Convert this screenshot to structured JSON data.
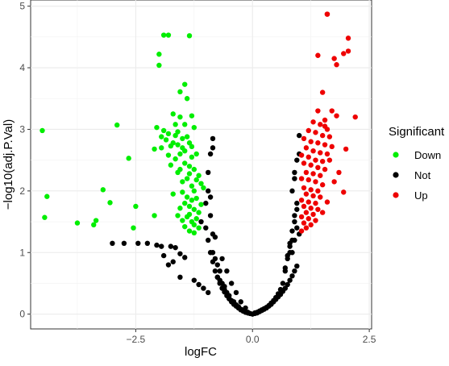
{
  "chart_data": {
    "type": "scatter",
    "title": "",
    "xlabel": "logFC",
    "ylabel": "−log10(adj.P.Val)",
    "xlim": [
      -4.75,
      2.55
    ],
    "ylim": [
      -0.24,
      5.1
    ],
    "x_ticks": [
      -2.5,
      0.0,
      2.5
    ],
    "x_tick_labels": [
      "−2.5",
      "0.0",
      "2.5"
    ],
    "y_ticks": [
      0,
      1,
      2,
      3,
      4,
      5
    ],
    "y_tick_labels": [
      "0",
      "1",
      "2",
      "3",
      "4",
      "5"
    ],
    "grid": true,
    "legend": {
      "title": "Significant",
      "placement": "right",
      "entries": [
        {
          "label": "Down",
          "color": "#00ee00"
        },
        {
          "label": "Not",
          "color": "#000000"
        },
        {
          "label": "Up",
          "color": "#ee0000"
        }
      ]
    },
    "series": [
      {
        "name": "Down",
        "color": "#00ee00",
        "x": [
          -1.9,
          -2.0,
          -1.8,
          -1.35,
          -2.0,
          -1.45,
          -1.55,
          -1.4,
          -1.7,
          -1.3,
          -1.55,
          -1.65,
          -1.45,
          -2.05,
          -1.25,
          -1.9,
          -1.6,
          -1.8,
          -1.65,
          -1.95,
          -1.4,
          -1.5,
          -1.85,
          -1.35,
          -1.7,
          -1.6,
          -1.75,
          -1.3,
          -1.95,
          -1.5,
          -2.1,
          -1.45,
          -1.55,
          -1.2,
          -1.8,
          -1.3,
          -1.65,
          -1.45,
          -1.75,
          -1.35,
          -1.55,
          -1.25,
          -1.6,
          -1.35,
          -1.15,
          -1.4,
          -1.2,
          -1.5,
          -1.1,
          -1.3,
          -1.05,
          -1.25,
          -1.5,
          -1.7,
          -1.4,
          -1.2,
          -1.3,
          -1.45,
          -1.1,
          -1.35,
          -1.55,
          -1.25,
          -1.15,
          -1.35,
          -1.6,
          -1.4,
          -1.2,
          -1.5,
          -1.3,
          -1.25,
          -1.45,
          -1.15,
          -1.35,
          -1.25,
          -2.1,
          -4.5,
          -2.9,
          -2.65,
          -4.4,
          -3.2,
          -4.45,
          -3.35,
          -3.05,
          -2.5,
          -3.75,
          -3.4,
          -2.55
        ],
        "y": [
          4.53,
          4.22,
          4.53,
          4.52,
          4.04,
          3.73,
          3.61,
          3.5,
          3.25,
          3.22,
          3.2,
          3.08,
          3.08,
          3.03,
          3.03,
          2.98,
          2.96,
          2.93,
          2.9,
          2.88,
          2.88,
          2.85,
          2.83,
          2.78,
          2.78,
          2.75,
          2.73,
          2.72,
          2.7,
          2.7,
          2.68,
          2.65,
          2.6,
          2.6,
          2.58,
          2.55,
          2.52,
          2.45,
          2.42,
          2.4,
          2.35,
          2.35,
          2.3,
          2.28,
          2.25,
          2.2,
          2.18,
          2.15,
          2.12,
          2.08,
          2.05,
          2.0,
          1.98,
          1.95,
          1.9,
          1.88,
          1.85,
          1.8,
          1.78,
          1.75,
          1.72,
          1.7,
          1.65,
          1.62,
          1.6,
          1.58,
          1.55,
          1.52,
          1.5,
          1.45,
          1.42,
          1.4,
          1.35,
          1.32,
          1.6,
          2.98,
          3.07,
          2.53,
          1.91,
          2.02,
          1.57,
          1.52,
          1.81,
          1.75,
          1.48,
          1.45,
          1.4
        ]
      },
      {
        "name": "Up",
        "color": "#ee0000",
        "x": [
          1.6,
          1.6,
          2.05,
          1.95,
          2.05,
          1.4,
          1.75,
          1.8,
          1.5,
          1.7,
          1.4,
          1.8,
          2.2,
          1.55,
          1.3,
          1.45,
          1.55,
          1.6,
          1.2,
          1.35,
          1.5,
          1.65,
          1.1,
          1.25,
          1.4,
          1.55,
          1.7,
          1.15,
          1.3,
          1.45,
          1.6,
          1.05,
          1.2,
          1.35,
          1.5,
          1.1,
          1.25,
          1.4,
          1.55,
          1.15,
          1.3,
          1.45,
          1.05,
          1.2,
          1.35,
          1.5,
          1.1,
          1.25,
          1.4,
          1.15,
          1.3,
          1.45,
          1.05,
          1.2,
          1.35,
          1.1,
          1.25,
          1.4,
          1.15,
          1.3,
          1.05,
          1.2,
          1.35,
          1.1,
          1.25,
          1.15,
          1.05,
          2.0,
          1.65,
          1.85,
          1.75,
          1.95,
          1.6,
          1.5
        ],
        "y": [
          4.87,
          4.87,
          4.48,
          4.23,
          4.27,
          4.2,
          4.15,
          4.05,
          3.6,
          3.3,
          3.3,
          3.22,
          3.2,
          3.15,
          3.12,
          3.08,
          3.05,
          3.0,
          2.98,
          2.95,
          2.9,
          2.88,
          2.85,
          2.8,
          2.78,
          2.75,
          2.72,
          2.7,
          2.65,
          2.62,
          2.6,
          2.58,
          2.55,
          2.5,
          2.48,
          2.45,
          2.42,
          2.38,
          2.35,
          2.3,
          2.28,
          2.25,
          2.2,
          2.18,
          2.15,
          2.1,
          2.05,
          2.02,
          2.0,
          1.95,
          1.92,
          1.9,
          1.85,
          1.82,
          1.8,
          1.75,
          1.72,
          1.7,
          1.65,
          1.62,
          1.58,
          1.55,
          1.52,
          1.48,
          1.45,
          1.4,
          1.35,
          2.68,
          2.5,
          2.3,
          2.15,
          1.98,
          1.82,
          1.65
        ]
      },
      {
        "name": "Not",
        "color": "#000000",
        "x": [
          -3.0,
          -2.75,
          -2.45,
          -2.25,
          -2.05,
          -1.95,
          -1.75,
          -1.65,
          -1.55,
          -1.9,
          -1.45,
          -1.7,
          -1.8,
          -1.55,
          -1.25,
          -1.15,
          -1.05,
          -0.95,
          -1.1,
          -1.0,
          -0.95,
          -0.9,
          -0.85,
          -0.9,
          -0.85,
          -0.8,
          -0.85,
          -0.8,
          -0.75,
          -0.7,
          -0.75,
          -0.7,
          -0.65,
          -0.6,
          -0.65,
          -0.6,
          -0.55,
          -0.5,
          -0.55,
          -0.5,
          -0.45,
          -0.4,
          -0.45,
          -0.4,
          -0.35,
          -0.3,
          -0.35,
          -0.3,
          -0.25,
          -0.2,
          -0.25,
          -0.2,
          -0.15,
          -0.1,
          -0.15,
          -0.1,
          -0.05,
          0.0,
          0.05,
          0.1,
          0.15,
          0.2,
          0.25,
          0.3,
          0.35,
          0.4,
          0.45,
          0.5,
          0.55,
          0.6,
          0.65,
          0.7,
          0.75,
          0.8,
          0.85,
          0.9,
          0.95,
          0.85,
          0.9,
          0.95,
          0.8,
          0.85,
          0.9,
          0.75,
          0.8,
          0.7,
          0.75,
          0.65,
          0.7,
          0.6,
          0.55,
          0.5,
          0.45,
          0.4,
          0.35,
          0.3,
          0.25,
          0.2,
          0.15,
          0.1,
          0.05,
          -0.05,
          -0.1,
          -0.15,
          -0.2,
          -0.25,
          -0.3,
          -0.35,
          -0.4,
          -0.45,
          -0.5,
          -0.55,
          -0.6,
          -0.65,
          -0.7,
          -0.75,
          -0.8,
          -0.85,
          -0.9,
          -0.95,
          -1.0,
          -0.9,
          -0.95,
          -0.85,
          0.9,
          0.95,
          1.0,
          0.95,
          1.0,
          0.9,
          0.85,
          0.95,
          1.0,
          0.9,
          0.85,
          0.8
        ],
        "y": [
          1.15,
          1.15,
          1.15,
          1.15,
          1.12,
          1.1,
          1.1,
          1.08,
          0.98,
          0.95,
          0.92,
          0.85,
          0.8,
          0.6,
          0.55,
          0.48,
          0.42,
          0.35,
          1.5,
          1.8,
          2.0,
          2.6,
          2.85,
          1.6,
          1.3,
          1.25,
          1.0,
          0.9,
          0.8,
          0.7,
          0.6,
          0.55,
          0.5,
          0.45,
          0.9,
          0.4,
          0.35,
          0.3,
          0.7,
          0.25,
          0.22,
          0.2,
          0.5,
          0.18,
          0.15,
          0.12,
          0.35,
          0.1,
          0.08,
          0.06,
          0.2,
          0.05,
          0.04,
          0.03,
          0.1,
          0.02,
          0.01,
          0.0,
          0.01,
          0.02,
          0.04,
          0.06,
          0.08,
          0.1,
          0.13,
          0.16,
          0.2,
          0.24,
          0.28,
          0.32,
          0.37,
          0.42,
          0.48,
          0.55,
          0.62,
          0.7,
          0.78,
          1.0,
          1.2,
          1.4,
          1.1,
          1.35,
          1.6,
          0.9,
          1.15,
          0.7,
          0.95,
          0.5,
          0.75,
          0.4,
          0.33,
          0.27,
          0.22,
          0.18,
          0.14,
          0.11,
          0.09,
          0.07,
          0.05,
          0.03,
          0.02,
          0.01,
          0.02,
          0.03,
          0.05,
          0.07,
          0.1,
          0.13,
          0.16,
          0.2,
          0.25,
          0.3,
          0.36,
          0.42,
          0.5,
          0.6,
          0.7,
          0.85,
          1.0,
          1.2,
          1.4,
          1.9,
          2.3,
          2.7,
          2.2,
          2.5,
          2.9,
          1.8,
          2.6,
          2.3,
          2.0,
          1.7,
          1.3,
          1.5,
          1.2,
          1.0
        ]
      }
    ]
  }
}
